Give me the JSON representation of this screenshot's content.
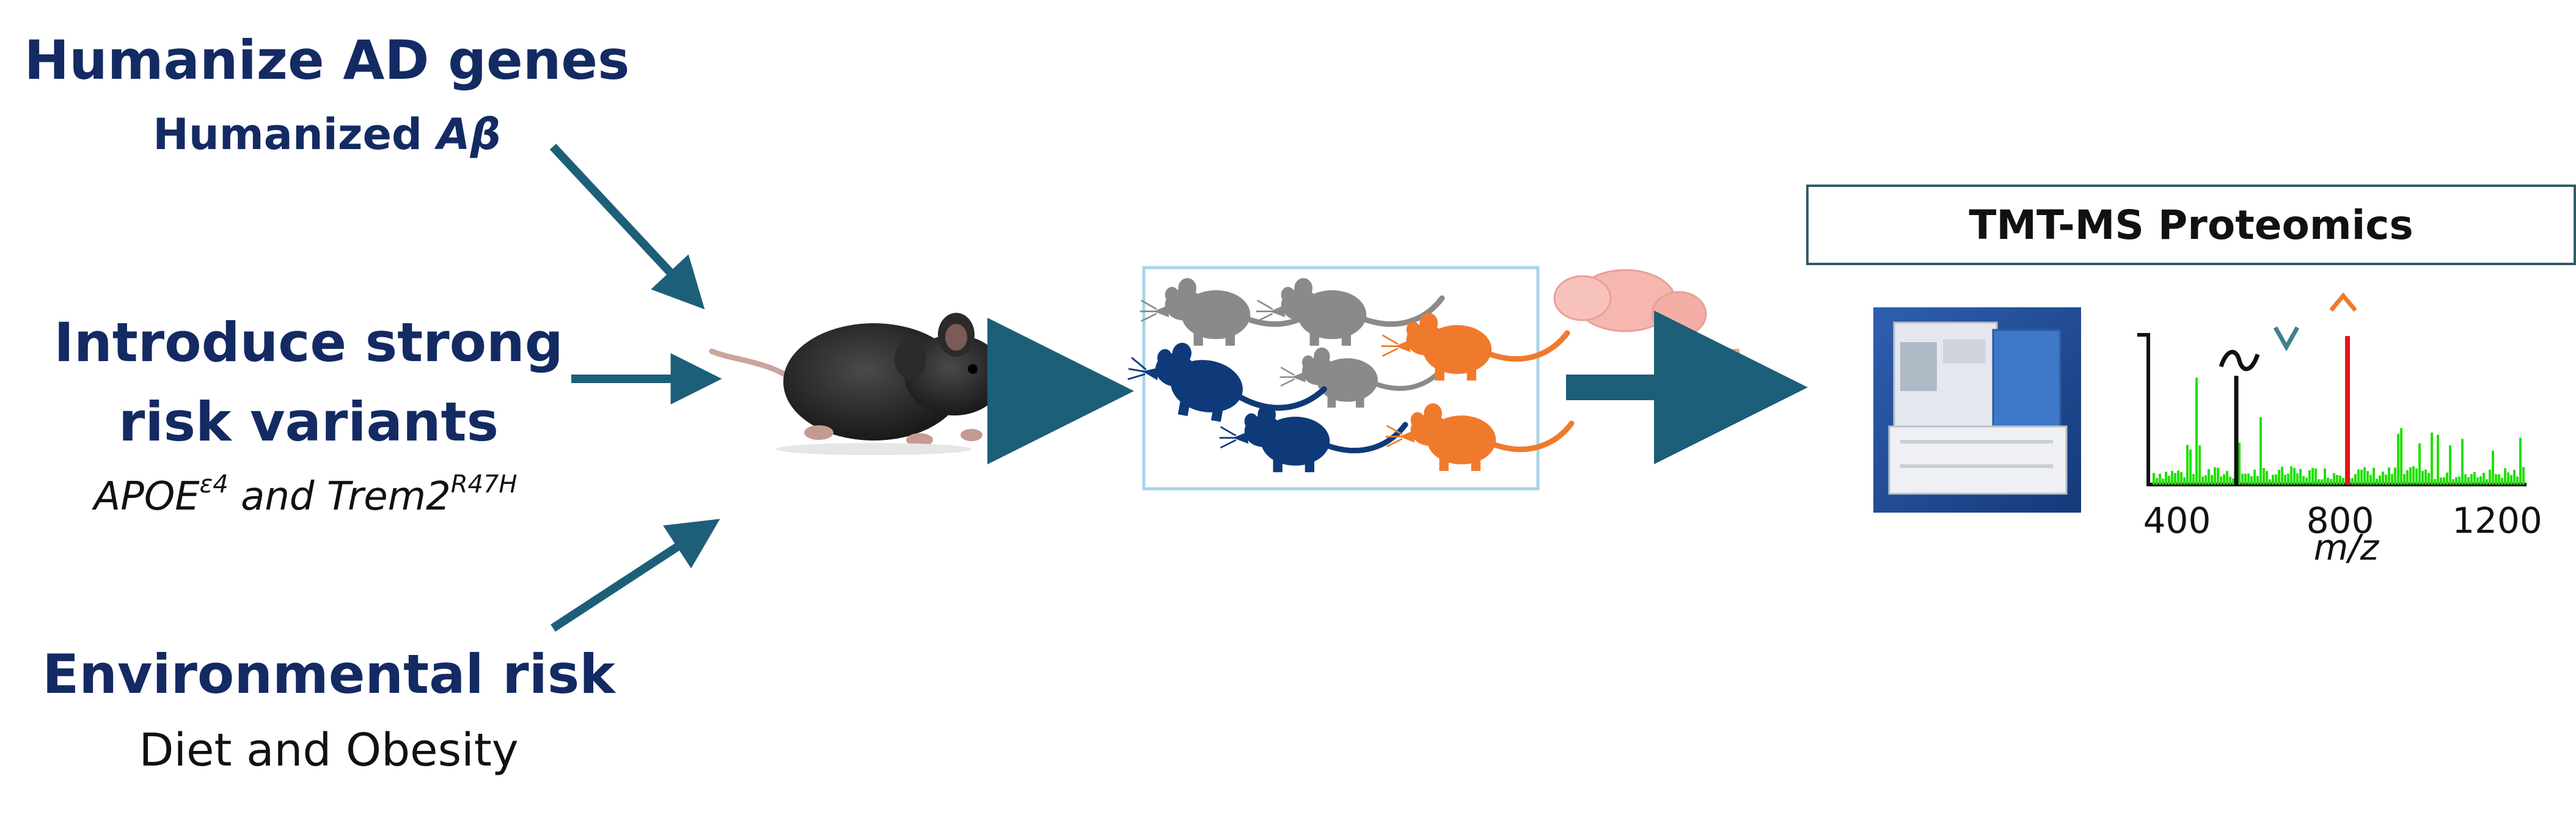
{
  "left_labels": {
    "humanize_title": "Humanize AD genes",
    "humanize_sub_text": "Humanized ",
    "humanize_sub_symbol": "Aβ",
    "risk_title_line1": "Introduce strong",
    "risk_title_line2": "risk variants",
    "risk_sub_apoe": "APOE",
    "risk_sub_apoe_sup": "ε4",
    "risk_sub_and": " and Trem2",
    "risk_sub_trem_sup": "R47H",
    "env_title": "Environmental risk",
    "env_sub": "Diet and Obesity"
  },
  "proteomics": {
    "title": "TMT-MS Proteomics",
    "x_ticks": [
      "400",
      "800",
      "1200"
    ],
    "x_label": "m/z"
  },
  "colors": {
    "navy_text": "#132a63",
    "arrow": "#1d5f79",
    "mouse_gray": "#8a8a8a",
    "mouse_blue": "#0f3a7a",
    "mouse_orange": "#f07a2c",
    "spectrum_green": "#22e000",
    "peak_red": "#e8141c",
    "peak_black": "#111111",
    "brain_pink": "#f6b7b0"
  },
  "icons": {
    "mouse_photo": "black-mouse-icon",
    "mice_group": "mouse-silhouette-icon",
    "brain": "brain-icon",
    "instrument": "mass-spectrometer-icon"
  }
}
